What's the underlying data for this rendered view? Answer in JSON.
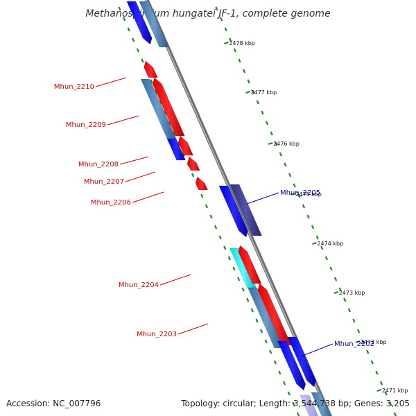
{
  "title": "Methanospirillum hungatei JF-1, complete genome",
  "footer": {
    "accession": "Accession: NC_007796",
    "topology": "Topology: circular; Length: 3,544,738 bp; Genes: 3,205"
  },
  "colors": {
    "backbone": "#8c8c8c",
    "tick": "#1e8c1e",
    "label_red": "#cc0000",
    "label_blue": "#0000aa"
  },
  "ticks": [
    {
      "label": "2478 kbp"
    },
    {
      "label": "2477 kbp"
    },
    {
      "label": "2476 kbp"
    },
    {
      "label": "2475 kbp"
    },
    {
      "label": "2474 kbp"
    },
    {
      "label": "2473 kbp"
    },
    {
      "label": "2472 kbp"
    },
    {
      "label": "2471 kbp"
    }
  ],
  "gene_labels": [
    {
      "name": "Mhun_2210",
      "side": "left"
    },
    {
      "name": "Mhun_2209",
      "side": "left"
    },
    {
      "name": "Mhun_2208",
      "side": "left"
    },
    {
      "name": "Mhun_2207",
      "side": "left"
    },
    {
      "name": "Mhun_2206",
      "side": "left"
    },
    {
      "name": "Mhun_2205",
      "side": "right"
    },
    {
      "name": "Mhun_2204",
      "side": "left"
    },
    {
      "name": "Mhun_2203",
      "side": "left"
    },
    {
      "name": "Mhun_2202",
      "side": "right"
    }
  ]
}
